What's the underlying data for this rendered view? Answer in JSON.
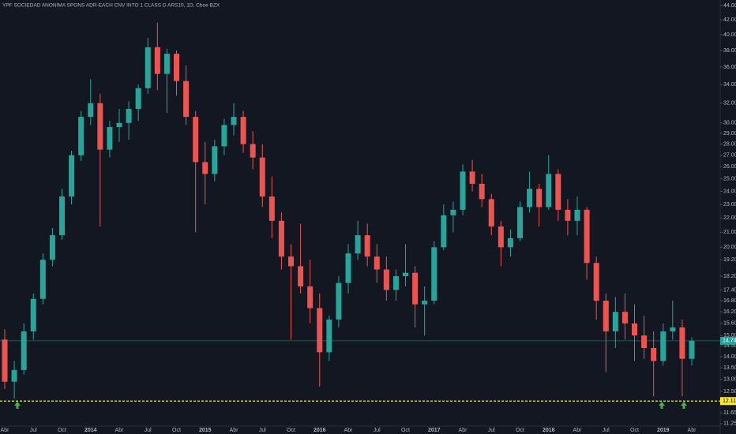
{
  "chart_data": {
    "type": "candlestick",
    "title": "YPF SOCIEDAD ANONIMA SPONS ADR-EACH CNV INTO 1 CLASS D ARS10, 1D, Cboe BZX",
    "categories": [
      "Abr",
      null,
      null,
      "Jul",
      null,
      null,
      "Oct",
      null,
      null,
      "2014",
      null,
      null,
      "Abr",
      null,
      null,
      "Jul",
      null,
      null,
      "Oct",
      null,
      null,
      "2015",
      null,
      null,
      "Abr",
      null,
      null,
      "Jul",
      null,
      null,
      "Oct",
      null,
      null,
      "2016",
      null,
      null,
      "Abr",
      null,
      null,
      "Jul",
      null,
      null,
      "Oct",
      null,
      null,
      "2017",
      null,
      null,
      "Abr",
      null,
      null,
      "Jul",
      null,
      null,
      "Oct",
      null,
      null,
      "2018",
      null,
      null,
      "Abr",
      null,
      null,
      "Jul",
      null,
      null,
      "Oct",
      null,
      null,
      "2019",
      null,
      null,
      "Abr"
    ],
    "open": [
      14.8,
      12.9,
      13.4,
      15.2,
      16.9,
      19.2,
      20.8,
      23.6,
      27.0,
      30.6,
      32.0,
      27.5,
      29.6,
      30.0,
      31.4,
      33.6,
      38.4,
      35.2,
      37.6,
      34.4,
      30.6,
      26.4,
      25.4,
      27.8,
      29.8,
      30.6,
      28.0,
      26.8,
      23.6,
      21.8,
      19.4,
      18.8,
      17.6,
      16.4,
      14.2,
      15.8,
      17.8,
      19.6,
      20.8,
      19.4,
      18.6,
      17.4,
      18.2,
      18.4,
      16.6,
      16.8,
      20.0,
      22.2,
      22.6,
      25.6,
      24.6,
      23.4,
      21.4,
      20.0,
      20.6,
      22.8,
      24.2,
      22.8,
      25.4,
      22.6,
      21.8,
      22.6,
      19.0,
      16.8,
      15.2,
      16.2,
      15.6,
      15.0,
      14.4,
      13.8,
      15.2,
      15.4,
      13.9
    ],
    "high": [
      15.3,
      13.8,
      15.6,
      17.2,
      19.6,
      21.3,
      24.2,
      27.4,
      31.2,
      34.6,
      33.0,
      30.2,
      31.4,
      32.2,
      34.0,
      39.6,
      41.6,
      38.2,
      38.0,
      36.2,
      31.2,
      28.2,
      28.4,
      30.4,
      32.0,
      31.2,
      29.2,
      28.0,
      25.2,
      22.4,
      20.2,
      21.6,
      19.2,
      17.2,
      16.0,
      18.2,
      20.2,
      21.8,
      21.6,
      20.2,
      19.4,
      18.6,
      20.2,
      18.8,
      17.6,
      20.4,
      23.0,
      23.2,
      26.2,
      26.6,
      25.4,
      23.8,
      21.8,
      21.2,
      23.2,
      25.6,
      24.6,
      27.0,
      25.8,
      23.4,
      23.6,
      22.8,
      19.4,
      17.2,
      17.0,
      17.2,
      16.6,
      16.0,
      15.2,
      15.6,
      16.8,
      15.8,
      14.9
    ],
    "low": [
      12.6,
      12.2,
      13.2,
      14.8,
      16.6,
      18.8,
      20.5,
      23.0,
      26.5,
      29.8,
      21.4,
      26.8,
      28.2,
      28.4,
      30.2,
      33.0,
      33.4,
      31.0,
      32.8,
      29.8,
      21.0,
      23.0,
      24.8,
      27.0,
      28.8,
      27.2,
      25.8,
      22.8,
      20.6,
      18.6,
      14.8,
      17.2,
      15.6,
      12.7,
      13.8,
      15.4,
      17.2,
      19.2,
      18.8,
      17.8,
      16.8,
      16.8,
      17.6,
      15.4,
      15.0,
      16.6,
      19.8,
      21.0,
      22.2,
      24.0,
      22.8,
      20.8,
      18.8,
      19.4,
      20.4,
      22.4,
      21.4,
      22.6,
      21.8,
      20.8,
      20.8,
      18.0,
      15.8,
      13.3,
      14.4,
      14.8,
      13.8,
      13.9,
      12.3,
      13.6,
      14.8,
      12.3,
      13.6
    ],
    "close": [
      12.9,
      13.4,
      15.2,
      16.9,
      19.2,
      20.8,
      23.6,
      27.0,
      30.6,
      32.0,
      27.5,
      29.6,
      30.0,
      31.4,
      33.6,
      38.4,
      35.2,
      37.6,
      34.4,
      30.6,
      26.4,
      25.4,
      27.8,
      29.8,
      30.6,
      28.0,
      26.8,
      23.6,
      21.8,
      19.4,
      18.8,
      17.6,
      16.4,
      14.2,
      15.8,
      17.8,
      19.6,
      20.8,
      19.4,
      18.6,
      17.4,
      18.2,
      18.4,
      16.6,
      16.8,
      20.0,
      22.2,
      22.6,
      25.6,
      24.6,
      23.4,
      21.4,
      20.0,
      20.6,
      22.8,
      24.2,
      22.8,
      25.4,
      22.6,
      21.8,
      22.6,
      19.0,
      16.8,
      15.2,
      16.2,
      15.6,
      15.0,
      14.4,
      13.8,
      15.2,
      15.4,
      13.9,
      14.74
    ],
    "up_color": "#26a69a",
    "down_color": "#ef5350",
    "log_scale": true,
    "grid": false,
    "ylim": [
      11.16,
      44.8
    ],
    "yticks": [
      {
        "value": 44,
        "label": "44.00"
      },
      {
        "value": 42,
        "label": "42.00"
      },
      {
        "value": 40,
        "label": "40.00"
      },
      {
        "value": 38,
        "label": "38.00"
      },
      {
        "value": 36,
        "label": "36.00"
      },
      {
        "value": 34,
        "label": "34.00"
      },
      {
        "value": 32,
        "label": "32.00"
      },
      {
        "value": 30,
        "label": "30.00"
      },
      {
        "value": 29,
        "label": "29.00"
      },
      {
        "value": 28,
        "label": "28.00"
      },
      {
        "value": 27,
        "label": "27.00"
      },
      {
        "value": 26,
        "label": "26.00"
      },
      {
        "value": 25,
        "label": "25.00"
      },
      {
        "value": 24,
        "label": "24.00"
      },
      {
        "value": 23,
        "label": "23.00"
      },
      {
        "value": 22,
        "label": "22.00"
      },
      {
        "value": 21,
        "label": "21.00"
      },
      {
        "value": 20,
        "label": "20.00"
      },
      {
        "value": 19.2,
        "label": "19.20"
      },
      {
        "value": 18.2,
        "label": "18.20"
      },
      {
        "value": 17.4,
        "label": "17.40"
      },
      {
        "value": 16.8,
        "label": "16.80"
      },
      {
        "value": 16.2,
        "label": "16.20"
      },
      {
        "value": 15.6,
        "label": "15.60"
      },
      {
        "value": 15,
        "label": "15.00"
      },
      {
        "value": 14.5,
        "label": "14.50"
      },
      {
        "value": 14,
        "label": "14.00"
      },
      {
        "value": 13.5,
        "label": "13.50"
      },
      {
        "value": 13,
        "label": "13.00"
      },
      {
        "value": 12.5,
        "label": "12.50"
      },
      {
        "value": 11.65,
        "label": "11.65"
      },
      {
        "value": 11.25,
        "label": "11.25"
      }
    ],
    "last_price_color": "#26a69a",
    "level": 12.11,
    "level_color": "#ffeb3b"
  }
}
